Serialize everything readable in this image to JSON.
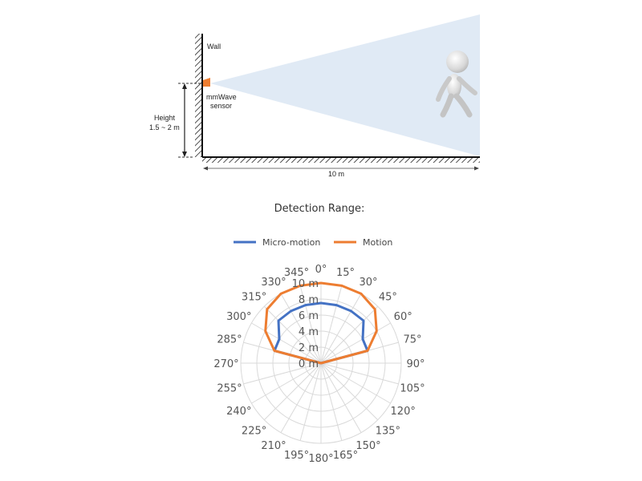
{
  "scene": {
    "wall_label": "Wall",
    "sensor_label_line1": "mmWave",
    "sensor_label_line2": "sensor",
    "height_label_line1": "Height",
    "height_label_line2": "1.5 ~ 2 m",
    "distance_label": "10 m"
  },
  "chart_data": {
    "type": "radar",
    "title": "Detection Range:",
    "legend": [
      {
        "name": "Micro-motion",
        "color": "#4472C4"
      },
      {
        "name": "Motion",
        "color": "#ED7D31"
      }
    ],
    "angle_labels": [
      "0°",
      "15°",
      "30°",
      "45°",
      "60°",
      "75°",
      "90°",
      "105°",
      "120°",
      "135°",
      "150°",
      "165°",
      "180°",
      "195°",
      "210°",
      "225°",
      "240°",
      "255°",
      "270°",
      "285°",
      "300°",
      "315°",
      "330°",
      "345°"
    ],
    "ring_labels": [
      "0 m",
      "2 m",
      "4 m",
      "6 m",
      "8 m",
      "10 m"
    ],
    "r_max": 10,
    "grid_color": "#d9d9d9",
    "series": [
      {
        "name": "Micro-motion",
        "color": "#4472C4",
        "angles": [
          0,
          15,
          30,
          45,
          60,
          75,
          90,
          105,
          120,
          135,
          150,
          165,
          180,
          195,
          210,
          225,
          240,
          255,
          270,
          285,
          300,
          315,
          330,
          345
        ],
        "values": [
          7.5,
          7.5,
          7.5,
          7.5,
          6,
          6,
          0,
          0,
          0,
          0,
          0,
          0,
          0,
          0,
          0,
          0,
          0,
          0,
          0,
          6,
          6,
          7.5,
          7.5,
          7.5
        ]
      },
      {
        "name": "Motion",
        "color": "#ED7D31",
        "angles": [
          0,
          15,
          30,
          45,
          60,
          75,
          90,
          105,
          120,
          135,
          150,
          165,
          180,
          195,
          210,
          225,
          240,
          255,
          270,
          285,
          300,
          315,
          330,
          345
        ],
        "values": [
          10,
          10,
          10,
          9.5,
          8,
          6,
          0,
          0,
          0,
          0,
          0,
          0,
          0,
          0,
          0,
          0,
          0,
          0,
          0,
          6,
          8,
          9.5,
          10,
          10
        ]
      }
    ]
  }
}
